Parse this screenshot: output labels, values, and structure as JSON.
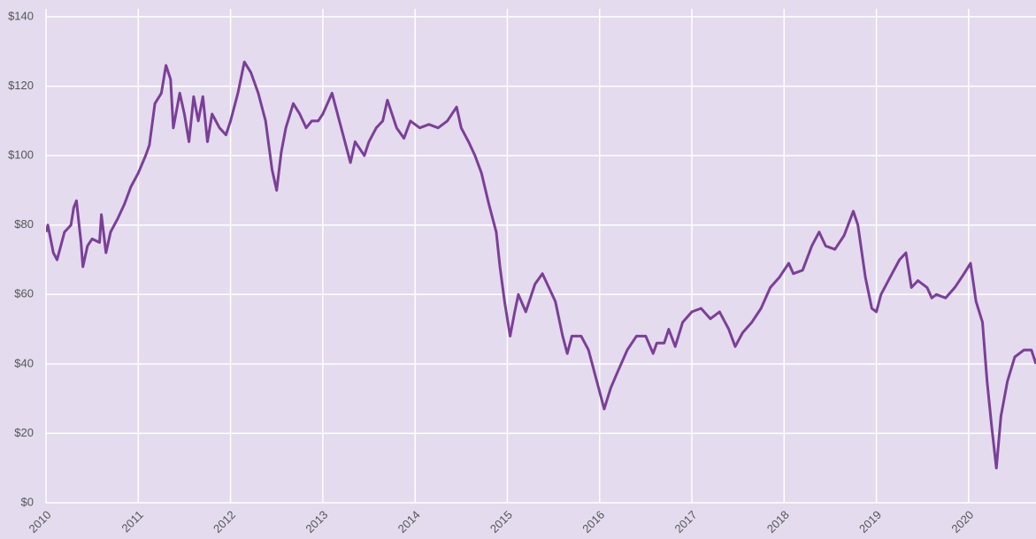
{
  "chart_data": {
    "type": "line",
    "x": [
      2010.0,
      2010.02,
      2010.08,
      2010.12,
      2010.2,
      2010.27,
      2010.3,
      2010.33,
      2010.38,
      2010.4,
      2010.45,
      2010.5,
      2010.58,
      2010.6,
      2010.65,
      2010.7,
      2010.78,
      2010.85,
      2010.92,
      2011.0,
      2011.08,
      2011.12,
      2011.18,
      2011.25,
      2011.3,
      2011.35,
      2011.38,
      2011.45,
      2011.5,
      2011.55,
      2011.6,
      2011.65,
      2011.7,
      2011.75,
      2011.8,
      2011.88,
      2011.95,
      2012.0,
      2012.08,
      2012.15,
      2012.22,
      2012.3,
      2012.38,
      2012.45,
      2012.5,
      2012.55,
      2012.6,
      2012.68,
      2012.75,
      2012.82,
      2012.88,
      2012.95,
      2013.0,
      2013.1,
      2013.18,
      2013.25,
      2013.3,
      2013.35,
      2013.45,
      2013.5,
      2013.58,
      2013.65,
      2013.7,
      2013.8,
      2013.88,
      2013.95,
      2014.05,
      2014.15,
      2014.25,
      2014.35,
      2014.45,
      2014.5,
      2014.58,
      2014.65,
      2014.72,
      2014.8,
      2014.88,
      2014.92,
      2014.97,
      2015.03,
      2015.08,
      2015.12,
      2015.2,
      2015.3,
      2015.38,
      2015.45,
      2015.52,
      2015.6,
      2015.65,
      2015.7,
      2015.8,
      2015.88,
      2015.95,
      2016.02,
      2016.05,
      2016.12,
      2016.2,
      2016.3,
      2016.4,
      2016.5,
      2016.58,
      2016.62,
      2016.7,
      2016.75,
      2016.82,
      2016.9,
      2017.0,
      2017.1,
      2017.2,
      2017.3,
      2017.4,
      2017.47,
      2017.55,
      2017.65,
      2017.75,
      2017.85,
      2017.95,
      2018.05,
      2018.1,
      2018.2,
      2018.3,
      2018.38,
      2018.45,
      2018.55,
      2018.65,
      2018.75,
      2018.8,
      2018.88,
      2018.95,
      2019.0,
      2019.05,
      2019.15,
      2019.25,
      2019.32,
      2019.38,
      2019.45,
      2019.55,
      2019.6,
      2019.65,
      2019.75,
      2019.85,
      2019.95,
      2020.02,
      2020.08,
      2020.15,
      2020.2,
      2020.25,
      2020.3,
      2020.35,
      2020.42,
      2020.5,
      2020.6,
      2020.68,
      2020.73
    ],
    "series": [
      {
        "color": "#7b3f98",
        "values": [
          78,
          80,
          72,
          70,
          78,
          80,
          85,
          87,
          75,
          68,
          74,
          76,
          75,
          83,
          72,
          78,
          82,
          86,
          91,
          95,
          100,
          103,
          115,
          118,
          126,
          122,
          108,
          118,
          112,
          104,
          117,
          110,
          117,
          104,
          112,
          108,
          106,
          110,
          118,
          127,
          124,
          118,
          110,
          96,
          90,
          101,
          108,
          115,
          112,
          108,
          110,
          110,
          112,
          118,
          110,
          103,
          98,
          104,
          100,
          104,
          108,
          110,
          116,
          108,
          105,
          110,
          108,
          109,
          108,
          110,
          114,
          108,
          104,
          100,
          95,
          86,
          78,
          68,
          58,
          48,
          55,
          60,
          55,
          63,
          66,
          62,
          58,
          48,
          43,
          48,
          48,
          44,
          37,
          30,
          27,
          33,
          38,
          44,
          48,
          48,
          43,
          46,
          46,
          50,
          45,
          52,
          55,
          56,
          53,
          55,
          50,
          45,
          49,
          52,
          56,
          62,
          65,
          69,
          66,
          67,
          74,
          78,
          74,
          73,
          77,
          84,
          80,
          65,
          56,
          55,
          60,
          65,
          70,
          72,
          62,
          64,
          62,
          59,
          60,
          59,
          62,
          66,
          69,
          58,
          52,
          35,
          22,
          10,
          25,
          35,
          42,
          44,
          44,
          40
        ]
      }
    ],
    "xlim": [
      2010,
      2020.73
    ],
    "xticks": [
      2010,
      2011,
      2012,
      2013,
      2014,
      2015,
      2016,
      2017,
      2018,
      2019,
      2020
    ],
    "ylim": [
      0,
      140
    ],
    "yticks": [
      {
        "value": 0,
        "label": "$0"
      },
      {
        "value": 20,
        "label": "$20"
      },
      {
        "value": 40,
        "label": "$40"
      },
      {
        "value": 60,
        "label": "$60"
      },
      {
        "value": 80,
        "label": "$80"
      },
      {
        "value": 100,
        "label": "$100"
      },
      {
        "value": 120,
        "label": "$120"
      },
      {
        "value": 140,
        "label": "$140"
      }
    ],
    "grid": true
  }
}
